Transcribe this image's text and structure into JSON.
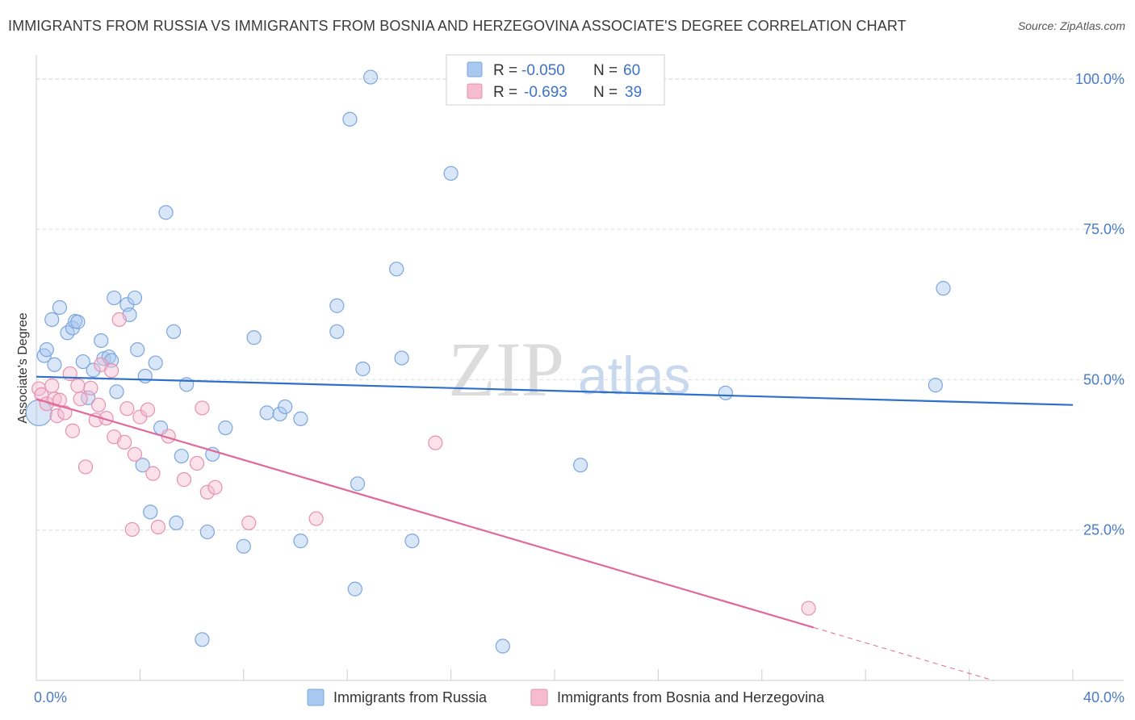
{
  "header": {
    "title": "IMMIGRANTS FROM RUSSIA VS IMMIGRANTS FROM BOSNIA AND HERZEGOVINA ASSOCIATE'S DEGREE CORRELATION CHART",
    "source": "Source: ZipAtlas.com"
  },
  "watermark": {
    "zip": "ZIP",
    "atlas": "atlas"
  },
  "colors": {
    "russia_fill": "#a9c8f0",
    "russia_stroke": "#7ba6dd",
    "russia_line": "#2e6fcc",
    "bosnia_fill": "#f5bcd0",
    "bosnia_stroke": "#e890b0",
    "bosnia_line": "#e0699a",
    "axis_text": "#4a7cc7",
    "grid": "#d9d9d9"
  },
  "legend_top": {
    "rows": [
      {
        "r_label": "R = ",
        "r_value": "-0.050",
        "n_label": "N = ",
        "n_value": "60"
      },
      {
        "r_label": "R = ",
        "r_value": "-0.693",
        "n_label": "N = ",
        "n_value": "39"
      }
    ]
  },
  "chart_data": {
    "type": "scatter",
    "title": "IMMIGRANTS FROM RUSSIA VS IMMIGRANTS FROM BOSNIA AND HERZEGOVINA ASSOCIATE'S DEGREE CORRELATION CHART",
    "xlabel": "",
    "ylabel": "Associate's Degree",
    "xlim": [
      0,
      40
    ],
    "ylim": [
      0,
      104
    ],
    "x_tick_labels": [
      {
        "value": 0,
        "label": "0.0%"
      },
      {
        "value": 40,
        "label": "40.0%"
      }
    ],
    "y_tick_labels": [
      {
        "value": 25,
        "label": "25.0%"
      },
      {
        "value": 50,
        "label": "50.0%"
      },
      {
        "value": 75,
        "label": "75.0%"
      },
      {
        "value": 100,
        "label": "100.0%"
      }
    ],
    "legend": [
      "Immigrants from Russia",
      "Immigrants from Bosnia and Herzegovina"
    ],
    "series": [
      {
        "name": "Immigrants from Russia",
        "r": -0.05,
        "n": 60,
        "trend": {
          "x0": 0,
          "y0": 50.5,
          "x1": 40,
          "y1": 45.8
        },
        "points": [
          [
            0.1,
            44.5
          ],
          [
            0.3,
            54
          ],
          [
            0.4,
            55
          ],
          [
            0.6,
            60
          ],
          [
            0.7,
            52.5
          ],
          [
            0.9,
            62
          ],
          [
            1.2,
            57.8
          ],
          [
            1.4,
            58.6
          ],
          [
            1.5,
            59.7
          ],
          [
            1.6,
            59.6
          ],
          [
            1.8,
            53
          ],
          [
            2.0,
            47
          ],
          [
            2.2,
            51.6
          ],
          [
            2.5,
            56.5
          ],
          [
            2.6,
            53.5
          ],
          [
            2.8,
            53.8
          ],
          [
            2.9,
            53.2
          ],
          [
            3.0,
            63.6
          ],
          [
            3.1,
            48
          ],
          [
            3.5,
            62.5
          ],
          [
            3.6,
            60.8
          ],
          [
            3.8,
            63.6
          ],
          [
            3.9,
            55
          ],
          [
            4.1,
            35.8
          ],
          [
            4.2,
            50.6
          ],
          [
            4.4,
            28
          ],
          [
            4.6,
            52.8
          ],
          [
            4.8,
            42
          ],
          [
            5.0,
            77.8
          ],
          [
            5.3,
            58
          ],
          [
            5.4,
            26.2
          ],
          [
            5.6,
            37.3
          ],
          [
            5.8,
            49.2
          ],
          [
            6.4,
            6.8
          ],
          [
            6.6,
            24.7
          ],
          [
            6.8,
            37.6
          ],
          [
            7.3,
            42
          ],
          [
            8.0,
            22.3
          ],
          [
            8.4,
            57
          ],
          [
            8.9,
            44.5
          ],
          [
            9.4,
            44.3
          ],
          [
            9.6,
            45.5
          ],
          [
            10.2,
            43.5
          ],
          [
            10.2,
            23.2
          ],
          [
            11.6,
            62.3
          ],
          [
            11.6,
            58
          ],
          [
            12.1,
            93.3
          ],
          [
            12.3,
            15.2
          ],
          [
            12.4,
            32.7
          ],
          [
            12.6,
            51.8
          ],
          [
            12.9,
            100.3
          ],
          [
            13.9,
            68.4
          ],
          [
            14.1,
            53.6
          ],
          [
            14.5,
            23.2
          ],
          [
            16.0,
            84.3
          ],
          [
            18.0,
            5.7
          ],
          [
            21.0,
            35.8
          ],
          [
            26.6,
            47.8
          ],
          [
            34.7,
            49.1
          ],
          [
            35.0,
            65.2
          ]
        ]
      },
      {
        "name": "Immigrants from Bosnia and Herzegovina",
        "r": -0.693,
        "n": 39,
        "trend": {
          "x0": 0,
          "y0": 46.8,
          "x1": 30,
          "y1": 8.8,
          "dash_x1": 40,
          "dash_y1": -3.9
        },
        "points": [
          [
            0.1,
            48.5
          ],
          [
            0.2,
            47.5
          ],
          [
            0.4,
            46
          ],
          [
            0.6,
            49
          ],
          [
            0.7,
            46.8
          ],
          [
            0.8,
            44
          ],
          [
            0.9,
            46.6
          ],
          [
            1.1,
            44.5
          ],
          [
            1.3,
            51
          ],
          [
            1.4,
            41.5
          ],
          [
            1.6,
            49
          ],
          [
            1.7,
            46.8
          ],
          [
            1.9,
            35.5
          ],
          [
            2.1,
            48.6
          ],
          [
            2.3,
            43.3
          ],
          [
            2.4,
            45.8
          ],
          [
            2.5,
            52.5
          ],
          [
            2.7,
            43.6
          ],
          [
            2.9,
            51.5
          ],
          [
            3.0,
            40.5
          ],
          [
            3.2,
            60
          ],
          [
            3.4,
            39.6
          ],
          [
            3.5,
            45.2
          ],
          [
            3.7,
            25.1
          ],
          [
            3.8,
            37.6
          ],
          [
            4.0,
            43.8
          ],
          [
            4.3,
            45
          ],
          [
            4.5,
            34.4
          ],
          [
            4.7,
            25.5
          ],
          [
            5.1,
            40.6
          ],
          [
            5.7,
            33.4
          ],
          [
            6.2,
            36.1
          ],
          [
            6.4,
            45.3
          ],
          [
            6.6,
            31.3
          ],
          [
            6.9,
            32.1
          ],
          [
            8.2,
            26.2
          ],
          [
            10.8,
            26.9
          ],
          [
            15.4,
            39.5
          ],
          [
            29.8,
            12
          ]
        ]
      }
    ]
  },
  "legend_bottom": {
    "items": [
      "Immigrants from Russia",
      "Immigrants from Bosnia and Herzegovina"
    ]
  }
}
